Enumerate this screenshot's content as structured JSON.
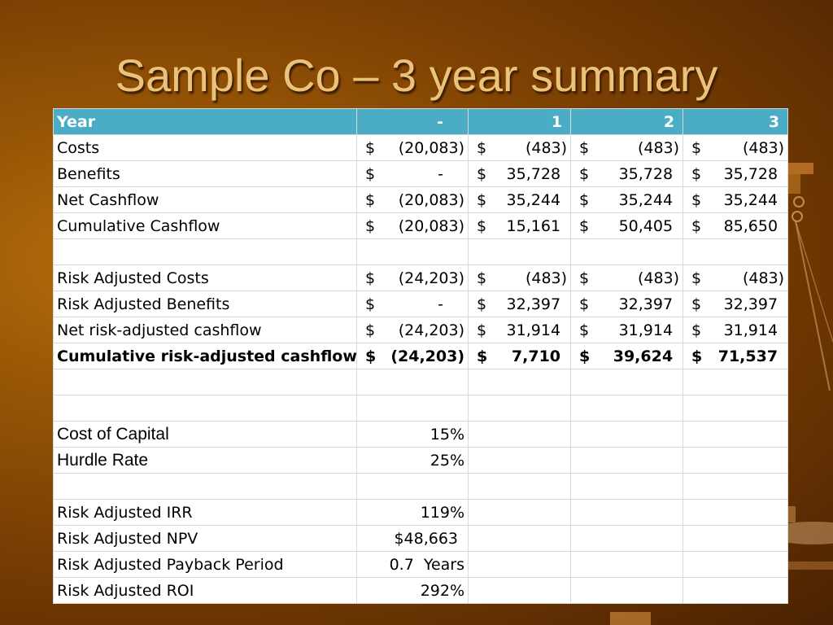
{
  "slide": {
    "title": "Sample Co – 3 year summary"
  },
  "table": {
    "header": [
      "Year",
      "-",
      "1",
      "2",
      "3"
    ],
    "rows": [
      {
        "label": "Costs",
        "cells": [
          [
            "$",
            "(20,083)"
          ],
          [
            "$",
            "(483)"
          ],
          [
            "$",
            "(483)"
          ],
          [
            "$",
            "(483)"
          ]
        ]
      },
      {
        "label": "Benefits",
        "cells": [
          [
            "$",
            "-"
          ],
          [
            "$",
            "35,728"
          ],
          [
            "$",
            "35,728"
          ],
          [
            "$",
            "35,728"
          ]
        ]
      },
      {
        "label": "Net Cashflow",
        "cells": [
          [
            "$",
            "(20,083)"
          ],
          [
            "$",
            "35,244"
          ],
          [
            "$",
            "35,244"
          ],
          [
            "$",
            "35,244"
          ]
        ]
      },
      {
        "label": "Cumulative Cashflow",
        "cells": [
          [
            "$",
            "(20,083)"
          ],
          [
            "$",
            "15,161"
          ],
          [
            "$",
            "50,405"
          ],
          [
            "$",
            "85,650"
          ]
        ]
      },
      {
        "label": "Risk Adjusted Costs",
        "cells": [
          [
            "$",
            "(24,203)"
          ],
          [
            "$",
            "(483)"
          ],
          [
            "$",
            "(483)"
          ],
          [
            "$",
            "(483)"
          ]
        ]
      },
      {
        "label": "Risk Adjusted Benefits",
        "cells": [
          [
            "$",
            "-"
          ],
          [
            "$",
            "32,397"
          ],
          [
            "$",
            "32,397"
          ],
          [
            "$",
            "32,397"
          ]
        ]
      },
      {
        "label": "Net risk-adjusted cashflow",
        "cells": [
          [
            "$",
            "(24,203)"
          ],
          [
            "$",
            "31,914"
          ],
          [
            "$",
            "31,914"
          ],
          [
            "$",
            "31,914"
          ]
        ]
      },
      {
        "label": "Cumulative risk-adjusted cashflow",
        "cells": [
          [
            "$",
            "(24,203)"
          ],
          [
            "$",
            "7,710"
          ],
          [
            "$",
            "39,624"
          ],
          [
            "$",
            "71,537"
          ]
        ]
      }
    ],
    "rates": [
      {
        "label": "Cost of Capital",
        "value": "15%"
      },
      {
        "label": "Hurdle Rate",
        "value": "25%"
      }
    ],
    "metrics": [
      {
        "label": "Risk Adjusted IRR",
        "value": "119%"
      },
      {
        "label": "Risk Adjusted NPV",
        "value": "$48,663"
      },
      {
        "label": "Risk Adjusted Payback Period",
        "value": "0.7  Years"
      },
      {
        "label": "Risk Adjusted ROI",
        "value": "292%"
      }
    ]
  }
}
